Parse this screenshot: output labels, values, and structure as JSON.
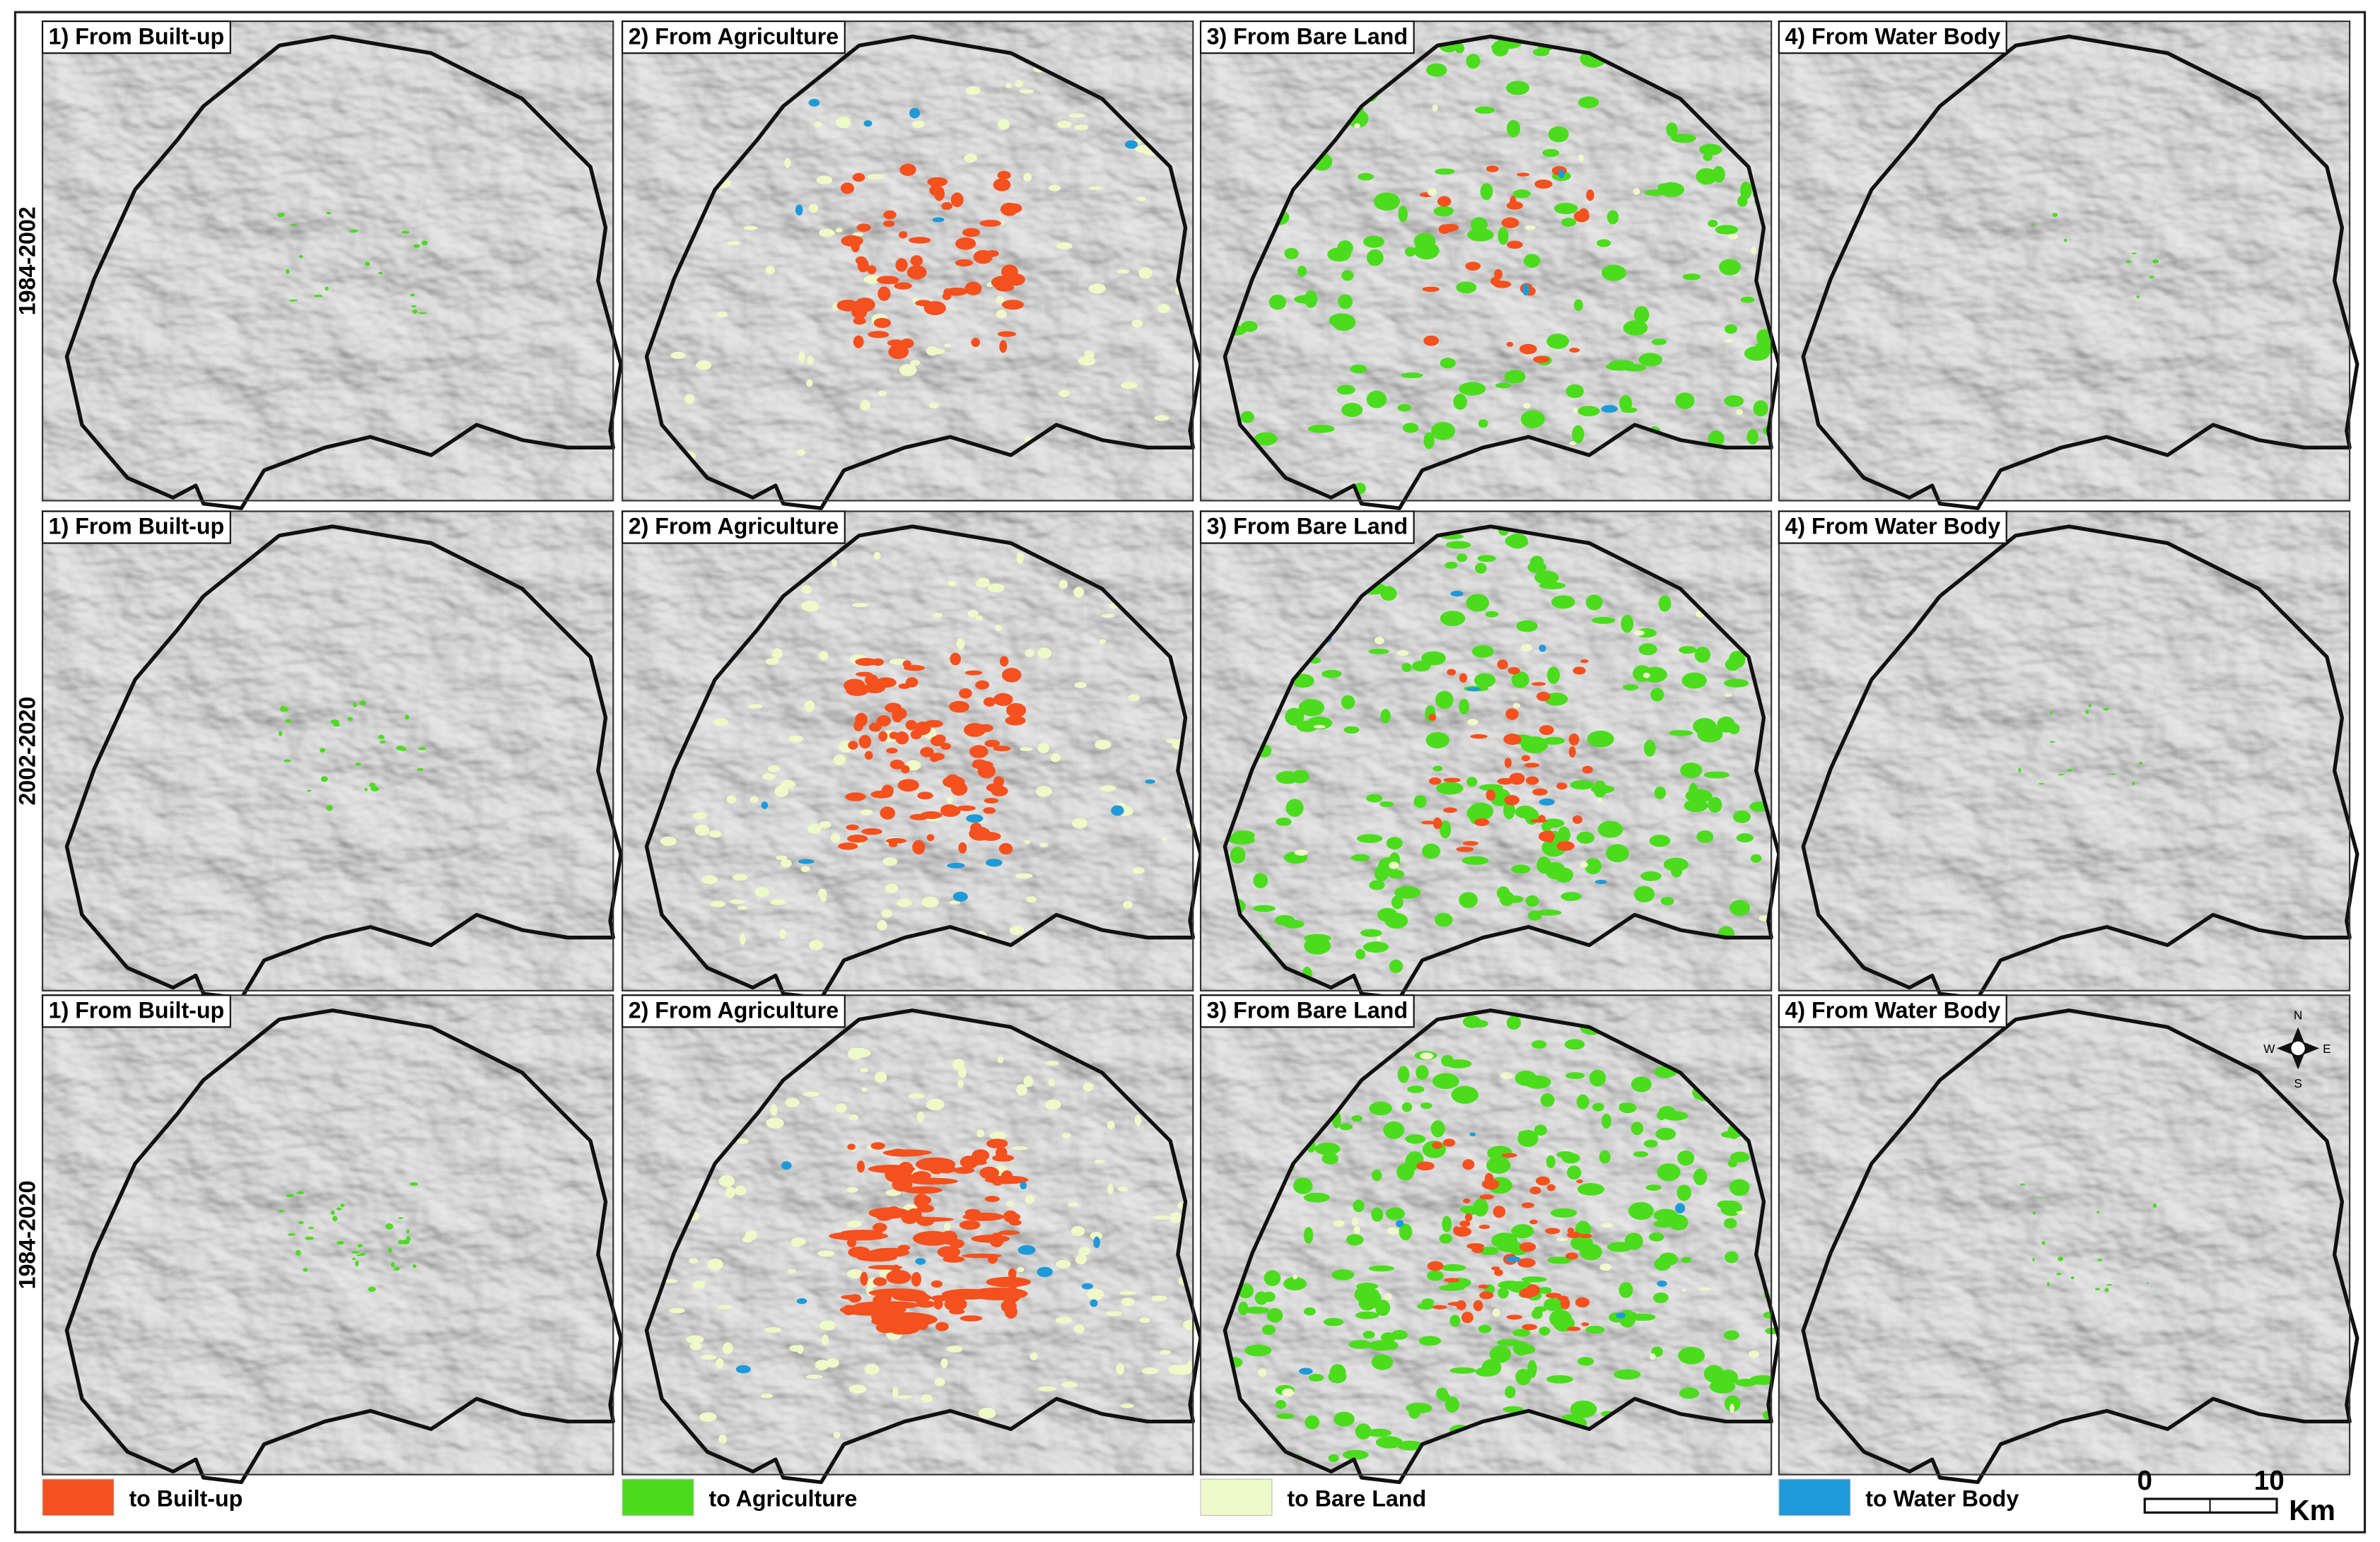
{
  "rows": [
    {
      "label": "1984-2002",
      "panels": [
        "1) From Built-up",
        "2) From Agriculture",
        "3) From Bare Land",
        "4) From Water Body"
      ]
    },
    {
      "label": "2002-2020",
      "panels": [
        "1) From Built-up",
        "2) From Agriculture",
        "3) From Bare Land",
        "4) From Water Body"
      ]
    },
    {
      "label": "1984-2020",
      "panels": [
        "1) From Built-up",
        "2) From Agriculture",
        "3) From Bare Land",
        "4) From Water Body"
      ]
    }
  ],
  "legend": [
    {
      "label": "to Built-up",
      "color": "#f4511e"
    },
    {
      "label": "to Agriculture",
      "color": "#4cdc1e"
    },
    {
      "label": "to Bare Land",
      "color": "#eef8c8"
    },
    {
      "label": "to Water Body",
      "color": "#1e9ad8"
    }
  ],
  "scale_bar": {
    "ticks": [
      0,
      10
    ],
    "unit": "Km"
  },
  "compass": {
    "n": "N",
    "e": "E",
    "s": "S",
    "w": "W"
  }
}
